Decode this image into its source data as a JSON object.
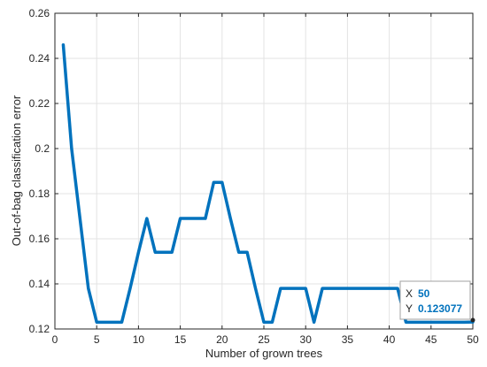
{
  "chart_data": {
    "type": "line",
    "title": "",
    "xlabel": "Number of grown trees",
    "ylabel": "Out-of-bag classification error",
    "xlim": [
      0,
      50
    ],
    "ylim": [
      0.12,
      0.26
    ],
    "xticks": [
      0,
      5,
      10,
      15,
      20,
      25,
      30,
      35,
      40,
      45,
      50
    ],
    "yticks": [
      0.12,
      0.14,
      0.16,
      0.18,
      0.2,
      0.22,
      0.24,
      0.26
    ],
    "ytick_labels": [
      "0.12",
      "0.14",
      "0.16",
      "0.18",
      "0.2",
      "0.22",
      "0.24",
      "0.26"
    ],
    "grid": true,
    "series": [
      {
        "color": "#0072BD",
        "x": [
          1,
          2,
          3,
          4,
          5,
          6,
          7,
          8,
          9,
          10,
          11,
          12,
          13,
          14,
          15,
          16,
          17,
          18,
          19,
          20,
          21,
          22,
          23,
          24,
          25,
          26,
          27,
          28,
          29,
          30,
          31,
          32,
          33,
          34,
          35,
          36,
          37,
          38,
          39,
          40,
          41,
          42,
          43,
          44,
          45,
          46,
          47,
          48,
          49,
          50
        ],
        "y": [
          0.246,
          0.2,
          0.169,
          0.138,
          0.123,
          0.123,
          0.123,
          0.123,
          0.138,
          0.154,
          0.169,
          0.154,
          0.154,
          0.154,
          0.169,
          0.169,
          0.169,
          0.169,
          0.185,
          0.185,
          0.169,
          0.154,
          0.154,
          0.138,
          0.123,
          0.123,
          0.138,
          0.138,
          0.138,
          0.138,
          0.123,
          0.138,
          0.138,
          0.138,
          0.138,
          0.138,
          0.138,
          0.138,
          0.138,
          0.138,
          0.138,
          0.123,
          0.123,
          0.123,
          0.123,
          0.123,
          0.123,
          0.123,
          0.123,
          0.123077
        ]
      }
    ],
    "datatip": {
      "x_label": "X",
      "x_value": "50",
      "y_label": "Y",
      "y_value": "0.123077",
      "value_color": "#0072BD"
    }
  }
}
